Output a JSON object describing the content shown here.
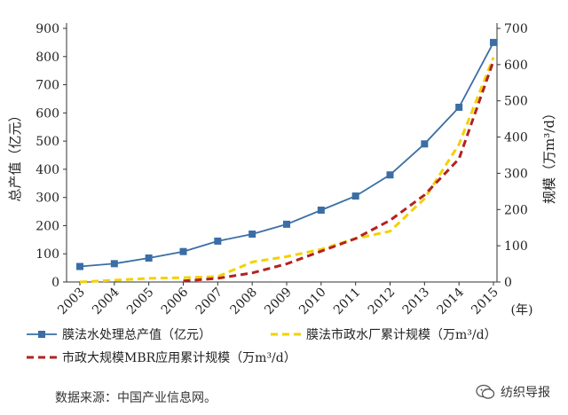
{
  "chart_data": {
    "type": "line",
    "categories": [
      "2003",
      "2004",
      "2005",
      "2006",
      "2007",
      "2008",
      "2009",
      "2010",
      "2011",
      "2012",
      "2013",
      "2014",
      "2015"
    ],
    "x_unit": "(年)",
    "y_left": {
      "label": "总产值（亿元）",
      "ticks": [
        0,
        100,
        200,
        300,
        400,
        500,
        600,
        700,
        800,
        900
      ],
      "ylim": [
        0,
        900
      ]
    },
    "y_right": {
      "label": "规模（万m³/d）",
      "ticks": [
        0,
        100,
        200,
        300,
        400,
        500,
        600,
        700
      ],
      "ylim": [
        0,
        700
      ]
    },
    "series": [
      {
        "name": "膜法水处理总产值（亿元）",
        "axis": "left",
        "style": "solid-marker",
        "color": "#3a6ea5",
        "values": [
          55,
          65,
          85,
          108,
          145,
          170,
          205,
          255,
          305,
          380,
          490,
          620,
          850
        ]
      },
      {
        "name": "膜法市政水厂累计规模（万m³/d）",
        "axis": "right",
        "style": "dashed",
        "color": "#f2d200",
        "values": [
          0,
          5,
          10,
          12,
          15,
          55,
          70,
          90,
          120,
          140,
          230,
          380,
          620
        ]
      },
      {
        "name": "市政大规模MBR应用累计规模（万m³/d）",
        "axis": "right",
        "style": "dashed",
        "color": "#b22222",
        "values": [
          null,
          null,
          null,
          3,
          10,
          25,
          50,
          85,
          120,
          170,
          240,
          340,
          610
        ]
      }
    ],
    "grid": false,
    "legend": "bottom"
  },
  "source_text": "数据来源：中国产业信息网。",
  "brand_text": "纺织导报",
  "brand_icon": "wechat-icon"
}
